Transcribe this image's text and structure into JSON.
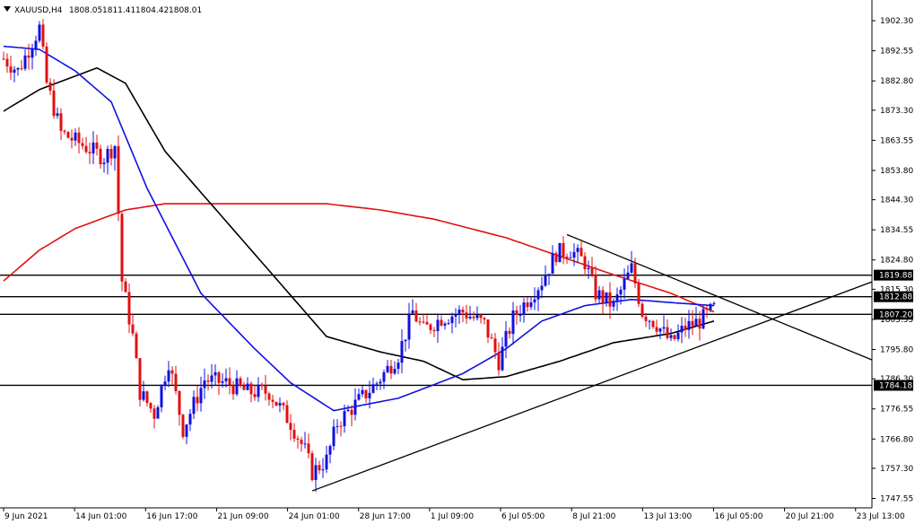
{
  "header": {
    "symbol": "XAUUSD,H4",
    "open": "1808.05",
    "high": "1811.41",
    "low": "1804.42",
    "close": "1808.01"
  },
  "chart_data": {
    "type": "candlestick",
    "symbol": "XAUUSD",
    "timeframe": "H4",
    "ylim": [
      1744.5,
      1909.0
    ],
    "y_ticks": [
      "1902.30",
      "1892.55",
      "1882.80",
      "1873.30",
      "1863.55",
      "1853.80",
      "1844.30",
      "1834.55",
      "1824.80",
      "1815.30",
      "1805.55",
      "1795.80",
      "1786.30",
      "1776.55",
      "1766.80",
      "1757.30",
      "1747.55"
    ],
    "x_ticks": [
      "9 Jun 2021",
      "14 Jun 01:00",
      "16 Jun 17:00",
      "21 Jun 09:00",
      "24 Jun 01:00",
      "28 Jun 17:00",
      "1 Jul 09:00",
      "6 Jul 05:00",
      "8 Jul 21:00",
      "13 Jul 13:00",
      "16 Jul 05:00",
      "20 Jul 21:00",
      "23 Jul 13:00"
    ],
    "levels": [
      {
        "value": 1819.88,
        "label": "1819.88"
      },
      {
        "value": 1812.88,
        "label": "1812.88"
      },
      {
        "value": 1807.2,
        "label": "1807.20"
      },
      {
        "value": 1784.18,
        "label": "1784.18"
      }
    ],
    "price_anchors": [
      {
        "t": 0,
        "p": 1890
      },
      {
        "t": 4,
        "p": 1886
      },
      {
        "t": 10,
        "p": 1900
      },
      {
        "t": 12,
        "p": 1882
      },
      {
        "t": 16,
        "p": 1866
      },
      {
        "t": 22,
        "p": 1862
      },
      {
        "t": 28,
        "p": 1858
      },
      {
        "t": 31,
        "p": 1862
      },
      {
        "t": 33,
        "p": 1818
      },
      {
        "t": 36,
        "p": 1800
      },
      {
        "t": 38,
        "p": 1782
      },
      {
        "t": 42,
        "p": 1775
      },
      {
        "t": 46,
        "p": 1792
      },
      {
        "t": 50,
        "p": 1770
      },
      {
        "t": 56,
        "p": 1786
      },
      {
        "t": 62,
        "p": 1785
      },
      {
        "t": 68,
        "p": 1782
      },
      {
        "t": 74,
        "p": 1782
      },
      {
        "t": 80,
        "p": 1772
      },
      {
        "t": 84,
        "p": 1763
      },
      {
        "t": 86,
        "p": 1756
      },
      {
        "t": 90,
        "p": 1760
      },
      {
        "t": 93,
        "p": 1772
      },
      {
        "t": 98,
        "p": 1778
      },
      {
        "t": 104,
        "p": 1785
      },
      {
        "t": 110,
        "p": 1794
      },
      {
        "t": 114,
        "p": 1808
      },
      {
        "t": 117,
        "p": 1802
      },
      {
        "t": 122,
        "p": 1806
      },
      {
        "t": 128,
        "p": 1808
      },
      {
        "t": 134,
        "p": 1804
      },
      {
        "t": 138,
        "p": 1792
      },
      {
        "t": 142,
        "p": 1806
      },
      {
        "t": 146,
        "p": 1812
      },
      {
        "t": 150,
        "p": 1818
      },
      {
        "t": 154,
        "p": 1827
      },
      {
        "t": 158,
        "p": 1828
      },
      {
        "t": 162,
        "p": 1824
      },
      {
        "t": 165,
        "p": 1814
      },
      {
        "t": 170,
        "p": 1810
      },
      {
        "t": 175,
        "p": 1822
      },
      {
        "t": 178,
        "p": 1808
      },
      {
        "t": 182,
        "p": 1804
      },
      {
        "t": 186,
        "p": 1798
      },
      {
        "t": 190,
        "p": 1803
      },
      {
        "t": 194,
        "p": 1805
      },
      {
        "t": 198,
        "p": 1809
      }
    ],
    "sma_black": [
      {
        "t": 0,
        "p": 1873
      },
      {
        "t": 10,
        "p": 1880
      },
      {
        "t": 26,
        "p": 1887
      },
      {
        "t": 34,
        "p": 1882
      },
      {
        "t": 45,
        "p": 1860
      },
      {
        "t": 60,
        "p": 1840
      },
      {
        "t": 75,
        "p": 1820
      },
      {
        "t": 90,
        "p": 1800
      },
      {
        "t": 105,
        "p": 1795
      },
      {
        "t": 117,
        "p": 1792
      },
      {
        "t": 128,
        "p": 1786
      },
      {
        "t": 140,
        "p": 1787
      },
      {
        "t": 155,
        "p": 1792
      },
      {
        "t": 170,
        "p": 1798
      },
      {
        "t": 186,
        "p": 1801
      },
      {
        "t": 198,
        "p": 1805
      }
    ],
    "sma_blue": [
      {
        "t": 0,
        "p": 1894
      },
      {
        "t": 10,
        "p": 1893
      },
      {
        "t": 20,
        "p": 1886
      },
      {
        "t": 30,
        "p": 1876
      },
      {
        "t": 40,
        "p": 1848
      },
      {
        "t": 55,
        "p": 1814
      },
      {
        "t": 70,
        "p": 1796
      },
      {
        "t": 80,
        "p": 1785
      },
      {
        "t": 92,
        "p": 1776
      },
      {
        "t": 110,
        "p": 1780
      },
      {
        "t": 128,
        "p": 1788
      },
      {
        "t": 140,
        "p": 1796
      },
      {
        "t": 150,
        "p": 1805
      },
      {
        "t": 162,
        "p": 1810
      },
      {
        "t": 175,
        "p": 1812
      },
      {
        "t": 186,
        "p": 1811
      },
      {
        "t": 198,
        "p": 1810
      }
    ],
    "sma_red": [
      {
        "t": 0,
        "p": 1818
      },
      {
        "t": 10,
        "p": 1828
      },
      {
        "t": 20,
        "p": 1835
      },
      {
        "t": 34,
        "p": 1841
      },
      {
        "t": 45,
        "p": 1843
      },
      {
        "t": 70,
        "p": 1843
      },
      {
        "t": 90,
        "p": 1843
      },
      {
        "t": 105,
        "p": 1841
      },
      {
        "t": 120,
        "p": 1838
      },
      {
        "t": 140,
        "p": 1832
      },
      {
        "t": 155,
        "p": 1826
      },
      {
        "t": 170,
        "p": 1820
      },
      {
        "t": 186,
        "p": 1814
      },
      {
        "t": 198,
        "p": 1808
      }
    ],
    "trendlines": [
      {
        "from": {
          "t": 86,
          "p": 1750
        },
        "to": {
          "t": 245,
          "p": 1819
        }
      },
      {
        "from": {
          "t": 157,
          "p": 1833
        },
        "to": {
          "t": 245,
          "p": 1791
        }
      }
    ],
    "grid": false
  }
}
